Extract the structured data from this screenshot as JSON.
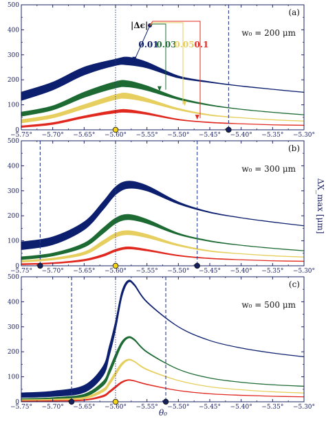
{
  "colors": {
    "frame": "#1a2060",
    "navy": "#0c1f6e",
    "green": "#1d6b33",
    "yellow": "#e6cf5f",
    "red": "#e0281e",
    "vline": "#2b3a8c",
    "dot_navy": "#15225e",
    "dot_yellow": "#f2d318"
  },
  "chart_data": [
    {
      "type": "line",
      "panel": "(a)",
      "annotation": "w₀ = 200 μm",
      "xlim": [
        -5.75,
        -5.3
      ],
      "ylim": [
        0,
        500
      ],
      "xticks": [
        -5.75,
        -5.7,
        -5.65,
        -5.6,
        -5.55,
        -5.5,
        -5.45,
        -5.4,
        -5.35,
        -5.3
      ],
      "xtick_labels": [
        "−5.75°",
        "−5.70°",
        "−5.65°",
        "−5.60°",
        "−5.55°",
        "−5.50°",
        "−5.45°",
        "−5.40°",
        "−5.35°",
        "−5.30°"
      ],
      "yticks": [
        0,
        100,
        200,
        300,
        400,
        500
      ],
      "center_line_x": -5.6,
      "dashed_lines_x": [
        -5.42
      ],
      "markers": [
        {
          "x": -5.6,
          "color": "yellow"
        },
        {
          "x": -5.42,
          "color": "navy"
        }
      ],
      "legend": {
        "title": "|Δϵ|",
        "entries": [
          "0.01",
          "0.03",
          "0.05",
          "0.1"
        ]
      },
      "series": [
        {
          "name": "0.01",
          "color": "navy",
          "x": [
            -5.75,
            -5.7,
            -5.65,
            -5.6,
            -5.58,
            -5.55,
            -5.5,
            -5.45,
            -5.4,
            -5.35,
            -5.3
          ],
          "upper": [
            150,
            190,
            250,
            282,
            290,
            270,
            215,
            192,
            175,
            162,
            150
          ],
          "lower": [
            118,
            160,
            220,
            258,
            260,
            248,
            208,
            190,
            175,
            162,
            150
          ]
        },
        {
          "name": "0.03",
          "color": "green",
          "x": [
            -5.75,
            -5.7,
            -5.65,
            -5.6,
            -5.58,
            -5.55,
            -5.5,
            -5.45,
            -5.4,
            -5.35,
            -5.3
          ],
          "upper": [
            70,
            95,
            150,
            192,
            195,
            175,
            128,
            100,
            82,
            70,
            60
          ],
          "lower": [
            55,
            80,
            130,
            168,
            172,
            158,
            122,
            98,
            82,
            70,
            60
          ]
        },
        {
          "name": "0.05",
          "color": "yellow",
          "x": [
            -5.75,
            -5.7,
            -5.65,
            -5.6,
            -5.58,
            -5.55,
            -5.5,
            -5.45,
            -5.4,
            -5.35,
            -5.3
          ],
          "upper": [
            40,
            60,
            100,
            140,
            145,
            125,
            85,
            60,
            48,
            40,
            35
          ],
          "lower": [
            28,
            48,
            85,
            122,
            125,
            112,
            80,
            58,
            48,
            40,
            35
          ]
        },
        {
          "name": "0.1",
          "color": "red",
          "x": [
            -5.75,
            -5.7,
            -5.65,
            -5.6,
            -5.58,
            -5.55,
            -5.5,
            -5.45,
            -5.4,
            -5.35,
            -5.3
          ],
          "upper": [
            15,
            28,
            55,
            78,
            80,
            68,
            42,
            30,
            24,
            20,
            18
          ],
          "lower": [
            10,
            22,
            48,
            68,
            70,
            62,
            40,
            29,
            24,
            20,
            18
          ]
        }
      ]
    },
    {
      "type": "line",
      "panel": "(b)",
      "annotation": "w₀ = 300 μm",
      "xlim": [
        -5.75,
        -5.3
      ],
      "ylim": [
        0,
        500
      ],
      "xticks": [
        -5.75,
        -5.7,
        -5.65,
        -5.6,
        -5.55,
        -5.5,
        -5.45,
        -5.4,
        -5.35,
        -5.3
      ],
      "xtick_labels": [
        "−5.75°",
        "−5.70°",
        "−5.65°",
        "−5.60°",
        "−5.55°",
        "−5.50°",
        "−5.45°",
        "−5.40°",
        "−5.35°",
        "−5.30°"
      ],
      "yticks": [
        0,
        100,
        200,
        300,
        400,
        500
      ],
      "center_line_x": -5.6,
      "dashed_lines_x": [
        -5.72,
        -5.47
      ],
      "markers": [
        {
          "x": -5.72,
          "color": "navy"
        },
        {
          "x": -5.6,
          "color": "yellow"
        },
        {
          "x": -5.47,
          "color": "navy"
        }
      ],
      "series": [
        {
          "name": "0.01",
          "color": "navy",
          "x": [
            -5.75,
            -5.7,
            -5.65,
            -5.62,
            -5.6,
            -5.58,
            -5.55,
            -5.5,
            -5.45,
            -5.4,
            -5.35,
            -5.3
          ],
          "upper": [
            95,
            115,
            175,
            255,
            315,
            338,
            320,
            255,
            215,
            192,
            175,
            160
          ],
          "lower": [
            65,
            85,
            145,
            225,
            285,
            310,
            300,
            248,
            213,
            192,
            175,
            160
          ]
        },
        {
          "name": "0.03",
          "color": "green",
          "x": [
            -5.75,
            -5.7,
            -5.65,
            -5.62,
            -5.6,
            -5.58,
            -5.55,
            -5.5,
            -5.45,
            -5.4,
            -5.35,
            -5.3
          ],
          "upper": [
            35,
            50,
            90,
            150,
            190,
            205,
            185,
            130,
            100,
            82,
            70,
            60
          ],
          "lower": [
            25,
            40,
            75,
            130,
            170,
            185,
            170,
            125,
            98,
            82,
            70,
            60
          ]
        },
        {
          "name": "0.05",
          "color": "yellow",
          "x": [
            -5.75,
            -5.7,
            -5.65,
            -5.62,
            -5.6,
            -5.58,
            -5.55,
            -5.5,
            -5.45,
            -5.4,
            -5.35,
            -5.3
          ],
          "upper": [
            20,
            30,
            55,
            100,
            130,
            140,
            125,
            85,
            60,
            48,
            40,
            35
          ],
          "lower": [
            15,
            24,
            45,
            85,
            115,
            125,
            113,
            80,
            58,
            48,
            40,
            35
          ]
        },
        {
          "name": "0.1",
          "color": "red",
          "x": [
            -5.75,
            -5.7,
            -5.65,
            -5.62,
            -5.6,
            -5.58,
            -5.55,
            -5.5,
            -5.45,
            -5.4,
            -5.35,
            -5.3
          ],
          "upper": [
            8,
            12,
            25,
            45,
            65,
            75,
            65,
            42,
            30,
            24,
            20,
            18
          ],
          "lower": [
            5,
            9,
            20,
            38,
            58,
            68,
            60,
            40,
            29,
            24,
            20,
            18
          ]
        }
      ]
    },
    {
      "type": "line",
      "panel": "(c)",
      "annotation": "w₀ = 500 μm",
      "xlim": [
        -5.75,
        -5.3
      ],
      "ylim": [
        0,
        500
      ],
      "xticks": [
        -5.75,
        -5.7,
        -5.65,
        -5.6,
        -5.55,
        -5.5,
        -5.45,
        -5.4,
        -5.35,
        -5.3
      ],
      "xtick_labels": [
        "−5.75°",
        "−5.70°",
        "−5.65°",
        "−5.60°",
        "−5.55°",
        "−5.50°",
        "−5.45°",
        "−5.40°",
        "−5.35°",
        "−5.30°"
      ],
      "yticks": [
        0,
        100,
        200,
        300,
        400,
        500
      ],
      "center_line_x": -5.6,
      "dashed_lines_x": [
        -5.67,
        -5.52
      ],
      "markers": [
        {
          "x": -5.67,
          "color": "navy"
        },
        {
          "x": -5.6,
          "color": "yellow"
        },
        {
          "x": -5.52,
          "color": "navy"
        }
      ],
      "series": [
        {
          "name": "0.01",
          "color": "navy",
          "x": [
            -5.75,
            -5.7,
            -5.65,
            -5.62,
            -5.61,
            -5.6,
            -5.59,
            -5.58,
            -5.57,
            -5.55,
            -5.5,
            -5.45,
            -5.4,
            -5.35,
            -5.3
          ],
          "upper": [
            35,
            42,
            65,
            140,
            220,
            320,
            440,
            485,
            470,
            400,
            300,
            245,
            215,
            195,
            180
          ],
          "lower": [
            18,
            22,
            38,
            105,
            185,
            290,
            420,
            478,
            465,
            398,
            300,
            245,
            215,
            195,
            180
          ]
        },
        {
          "name": "0.03",
          "color": "green",
          "x": [
            -5.75,
            -5.7,
            -5.65,
            -5.62,
            -5.61,
            -5.6,
            -5.59,
            -5.58,
            -5.57,
            -5.55,
            -5.5,
            -5.45,
            -5.4,
            -5.35,
            -5.3
          ],
          "upper": [
            12,
            16,
            30,
            80,
            130,
            190,
            240,
            260,
            250,
            200,
            130,
            95,
            78,
            68,
            62
          ],
          "lower": [
            8,
            10,
            20,
            65,
            110,
            170,
            228,
            255,
            246,
            198,
            130,
            95,
            78,
            68,
            62
          ]
        },
        {
          "name": "0.05",
          "color": "yellow",
          "x": [
            -5.75,
            -5.7,
            -5.65,
            -5.62,
            -5.61,
            -5.6,
            -5.59,
            -5.58,
            -5.57,
            -5.55,
            -5.5,
            -5.45,
            -5.4,
            -5.35,
            -5.3
          ],
          "upper": [
            8,
            10,
            18,
            50,
            80,
            120,
            155,
            170,
            162,
            130,
            85,
            60,
            48,
            40,
            35
          ],
          "lower": [
            5,
            7,
            12,
            40,
            68,
            106,
            146,
            166,
            160,
            128,
            85,
            60,
            48,
            40,
            35
          ]
        },
        {
          "name": "0.1",
          "color": "red",
          "x": [
            -5.75,
            -5.7,
            -5.65,
            -5.62,
            -5.61,
            -5.6,
            -5.59,
            -5.58,
            -5.57,
            -5.55,
            -5.5,
            -5.45,
            -5.4,
            -5.35,
            -5.3
          ],
          "upper": [
            3,
            4,
            8,
            25,
            42,
            62,
            80,
            88,
            84,
            70,
            45,
            32,
            26,
            22,
            20
          ],
          "lower": [
            2,
            3,
            6,
            20,
            36,
            56,
            76,
            86,
            83,
            69,
            45,
            32,
            26,
            22,
            20
          ]
        }
      ]
    }
  ],
  "ylabel": "ΔX_max [μm]",
  "xlabel": "θ₀"
}
